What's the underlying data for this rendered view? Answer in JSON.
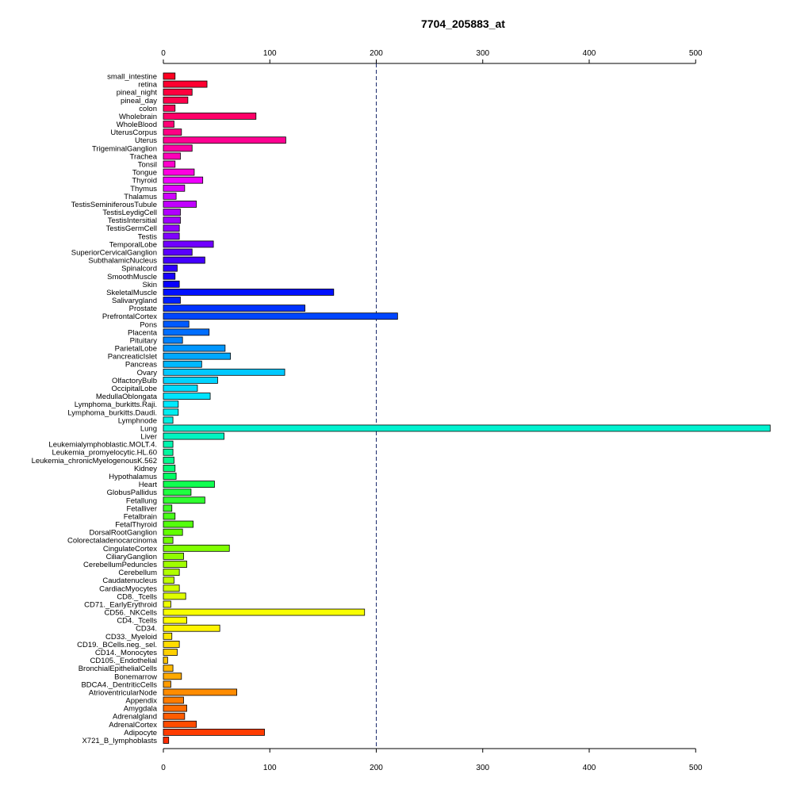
{
  "chart_data": {
    "type": "bar",
    "orientation": "horizontal",
    "title": "7704_205883_at",
    "xlim": [
      0,
      570
    ],
    "x_ticks": [
      0,
      100,
      200,
      300,
      400,
      500
    ],
    "reference_line": 200,
    "categories": [
      "small_intestine",
      "retina",
      "pineal_night",
      "pineal_day",
      "colon",
      "Wholebrain",
      "WholeBlood",
      "UterusCorpus",
      "Uterus",
      "TrigeminalGanglion",
      "Trachea",
      "Tonsil",
      "Tongue",
      "Thyroid",
      "Thymus",
      "Thalamus",
      "TestisSeminiferousTubule",
      "TestisLeydigCell",
      "TestisIntersitial",
      "TestisGermCell",
      "Testis",
      "TemporalLobe",
      "SuperiorCervicalGanglion",
      "SubthalamicNucleus",
      "Spinalcord",
      "SmoothMuscle",
      "Skin",
      "SkeletalMuscle",
      "Salivarygland",
      "Prostate",
      "PrefrontalCortex",
      "Pons",
      "Placenta",
      "Pituitary",
      "ParietalLobe",
      "PancreaticIslet",
      "Pancreas",
      "Ovary",
      "OlfactoryBulb",
      "OccipitalLobe",
      "MedullaOblongata",
      "Lymphoma_burkitts.Raji.",
      "Lymphoma_burkitts.Daudi.",
      "Lymphnode",
      "Lung",
      "Liver",
      "Leukemialymphoblastic.MOLT.4.",
      "Leukemia_promyelocytic.HL.60",
      "Leukemia_chronicMyelogenousK.562",
      "Kidney",
      "Hypothalamus",
      "Heart",
      "GlobusPallidus",
      "Fetallung",
      "Fetalliver",
      "Fetalbrain",
      "FetalThyroid",
      "DorsalRootGanglion",
      "Colorectaladenocarcinoma",
      "CingulateCortex",
      "CiliaryGanglion",
      "CerebellumPeduncles",
      "Cerebellum",
      "Caudatenucleus",
      "CardiacMyocytes",
      "CD8._Tcells",
      "CD71._EarlyErythroid",
      "CD56._NKCells",
      "CD4._Tcells",
      "CD34.",
      "CD33._Myeloid",
      "CD19._BCells.neg._sel.",
      "CD14._Monocytes",
      "CD105._Endothelial",
      "BronchialEpithelialCells",
      "Bonemarrow",
      "BDCA4._DentriticCells",
      "AtrioventricularNode",
      "Appendix",
      "Amygdala",
      "Adrenalgland",
      "AdrenalCortex",
      "Adipocyte",
      "X721_B_lymphoblasts"
    ],
    "values": [
      11,
      41,
      27,
      23,
      11,
      87,
      10,
      17,
      115,
      27,
      16,
      11,
      29,
      37,
      20,
      12,
      31,
      16,
      16,
      15,
      15,
      47,
      27,
      39,
      13,
      11,
      15,
      160,
      16,
      133,
      220,
      24,
      43,
      18,
      58,
      63,
      36,
      114,
      51,
      32,
      44,
      14,
      14,
      9,
      570,
      57,
      9,
      9,
      10,
      11,
      12,
      48,
      26,
      39,
      8,
      11,
      28,
      18,
      9,
      62,
      19,
      22,
      15,
      10,
      15,
      21,
      7,
      189,
      22,
      53,
      8,
      15,
      13,
      4,
      9,
      17,
      7,
      69,
      19,
      22,
      20,
      31,
      95,
      5
    ],
    "colors": [
      "#ff0022",
      "#ff0030",
      "#ff003e",
      "#ff004c",
      "#ff005a",
      "#ff0068",
      "#ff0076",
      "#ff0084",
      "#ff0092",
      "#ff00a4",
      "#ff00b8",
      "#ff00cc",
      "#ff00e0",
      "#f000ff",
      "#e000ff",
      "#d000ff",
      "#c000ff",
      "#b000ff",
      "#a000ff",
      "#9000ff",
      "#8000ff",
      "#7000ff",
      "#5a00ff",
      "#4400ff",
      "#2e00ff",
      "#1800ff",
      "#0800ff",
      "#0010ff",
      "#0020ff",
      "#0032ff",
      "#0046ff",
      "#005aff",
      "#006eff",
      "#0082ff",
      "#0096ff",
      "#00a8ff",
      "#00b8ff",
      "#00c8ff",
      "#00d4ff",
      "#00dcff",
      "#00e4ff",
      "#00eaff",
      "#00eef0",
      "#00f0e0",
      "#00f2d0",
      "#00f4c0",
      "#00f6b0",
      "#00f89e",
      "#00fa8c",
      "#00fc78",
      "#00fe64",
      "#10ff50",
      "#20ff40",
      "#30ff30",
      "#3cff24",
      "#48ff18",
      "#54ff0c",
      "#62ff00",
      "#70ff00",
      "#80ff00",
      "#90ff00",
      "#a0ff00",
      "#b0ff00",
      "#c0ff00",
      "#d0ff00",
      "#e0ff00",
      "#eeff00",
      "#f8ff00",
      "#ffff00",
      "#fff400",
      "#ffe800",
      "#ffdc00",
      "#ffd000",
      "#ffc400",
      "#ffb800",
      "#ffaa00",
      "#ff9c00",
      "#ff8c00",
      "#ff7c00",
      "#ff6c00",
      "#ff5c00",
      "#ff4c00",
      "#ff3c00",
      "#ff2c00"
    ]
  }
}
